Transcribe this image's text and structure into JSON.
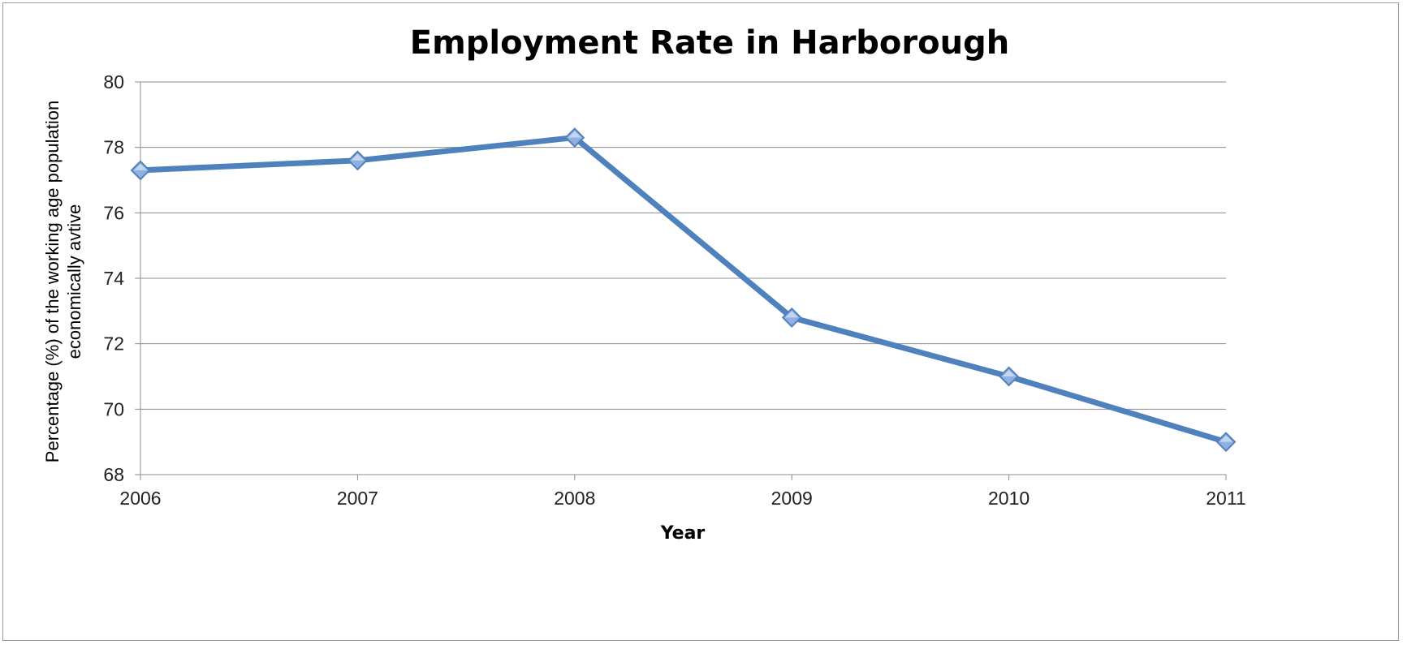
{
  "chart_data": {
    "type": "line",
    "title": "Employment Rate in Harborough",
    "xlabel": "Year",
    "ylabel_lines": [
      "Percentage (%) of the working age population",
      "economically avtive"
    ],
    "categories": [
      "2006",
      "2007",
      "2008",
      "2009",
      "2010",
      "2011"
    ],
    "series": [
      {
        "values": [
          77.3,
          77.6,
          78.3,
          72.8,
          71.0,
          69.0
        ],
        "color": "#4F81BD"
      }
    ],
    "ylim": [
      68,
      80
    ],
    "yticks": [
      68,
      70,
      72,
      74,
      76,
      78,
      80
    ],
    "grid": true,
    "legend": "none"
  }
}
